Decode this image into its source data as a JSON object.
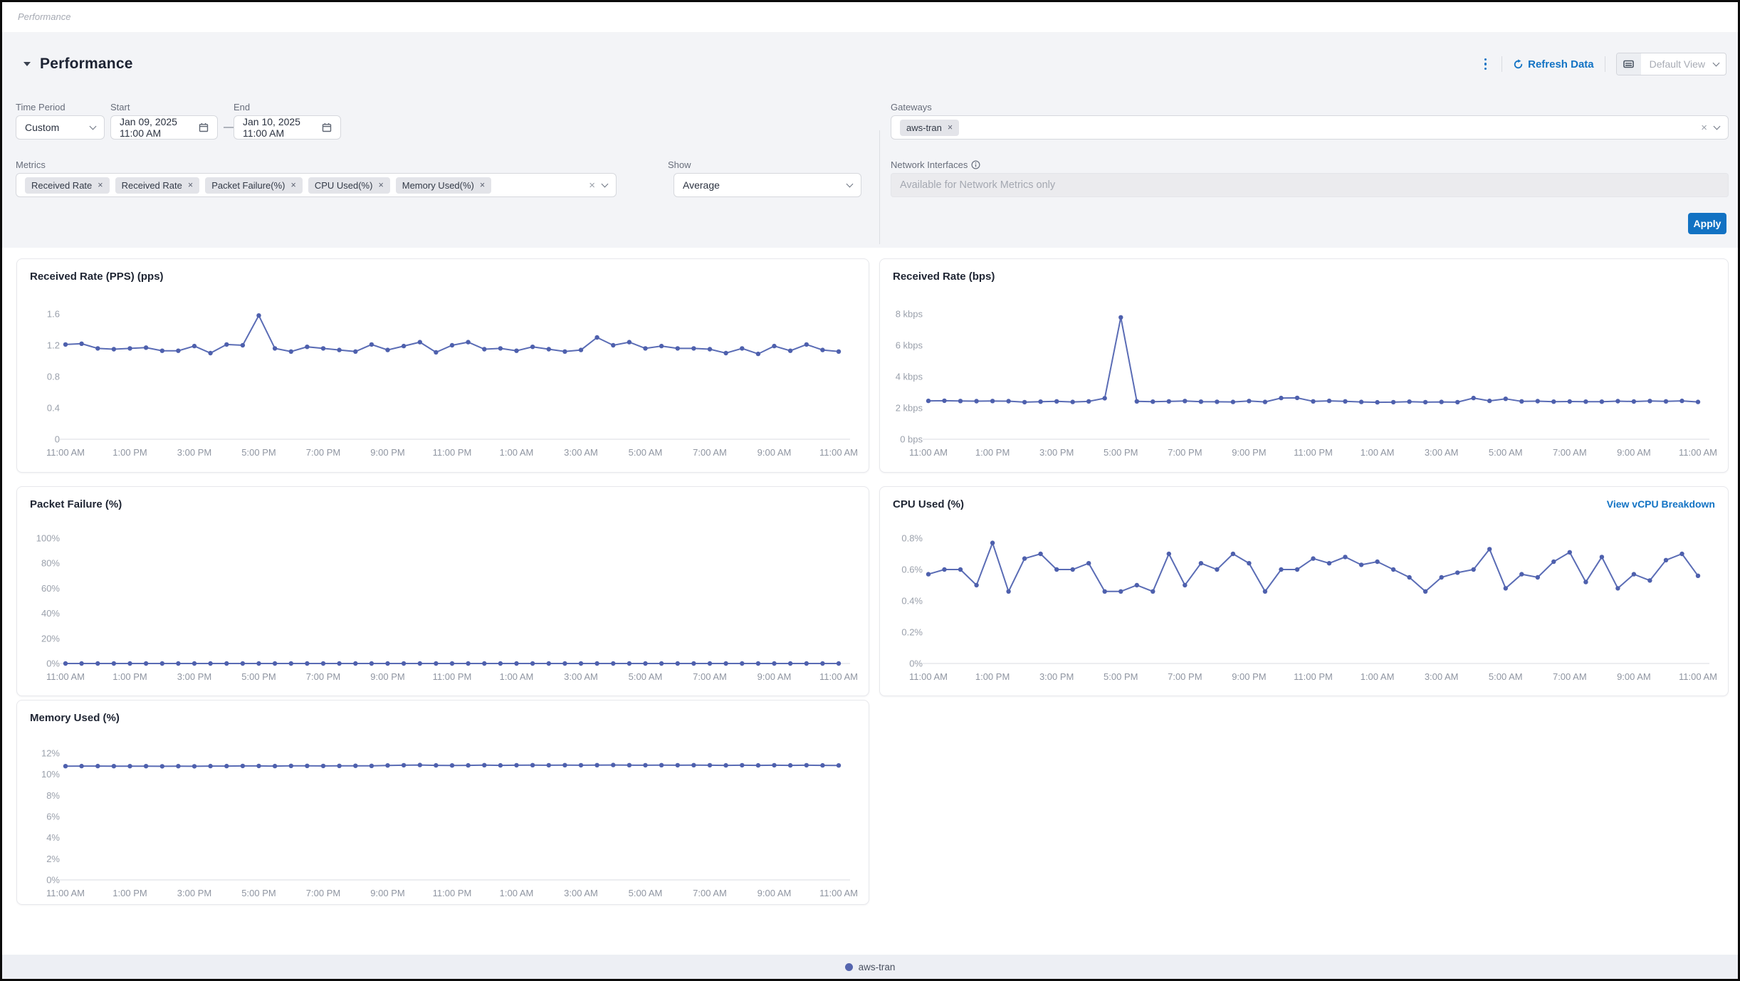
{
  "breadcrumb": {
    "label": "Performance"
  },
  "header": {
    "title": "Performance",
    "refresh_label": "Refresh Data",
    "view_selector": {
      "value": "Default View"
    }
  },
  "filters": {
    "time_period": {
      "label": "Time Period",
      "value": "Custom"
    },
    "start": {
      "label": "Start",
      "value": "Jan 09, 2025 11:00 AM"
    },
    "range_separator": "—",
    "end": {
      "label": "End",
      "value": "Jan 10, 2025 11:00 AM"
    },
    "gateways": {
      "label": "Gateways",
      "chips": [
        "aws-tran"
      ]
    },
    "metrics": {
      "label": "Metrics",
      "chips": [
        "Received Rate",
        "Received Rate",
        "Packet Failure(%)",
        "CPU Used(%)",
        "Memory Used(%)"
      ]
    },
    "show": {
      "label": "Show",
      "value": "Average"
    },
    "network_interfaces": {
      "label": "Network Interfaces",
      "placeholder": "Available for Network Metrics only"
    },
    "apply_label": "Apply"
  },
  "footer": {
    "legend": [
      {
        "label": "aws-tran",
        "color": "#5565ae"
      }
    ]
  },
  "colors": {
    "accent_blue": "#1273c4",
    "series_line": "#5a6cb5",
    "series_dot": "#4e60ad",
    "panel_bg": "#f3f4f7",
    "footer_bg": "#edeff4"
  },
  "chart_data": [
    {
      "type": "line",
      "title": "Received Rate (PPS) (pps)",
      "y_max": 1.6,
      "y_ticks": [
        {
          "label": "1.6",
          "value": 1.6
        },
        {
          "label": "1.2",
          "value": 1.2
        },
        {
          "label": "0.8",
          "value": 0.8
        },
        {
          "label": "0.4",
          "value": 0.4
        },
        {
          "label": "0",
          "value": 0
        }
      ],
      "x_labels": [
        "11:00 AM",
        "1:00 PM",
        "3:00 PM",
        "5:00 PM",
        "7:00 PM",
        "9:00 PM",
        "11:00 PM",
        "1:00 AM",
        "3:00 AM",
        "5:00 AM",
        "7:00 AM",
        "9:00 AM",
        "11:00 AM"
      ],
      "x_label_every": 4,
      "grid": false,
      "legend_position": "shared-footer",
      "series": [
        {
          "name": "aws-tran",
          "values": [
            1.21,
            1.22,
            1.16,
            1.15,
            1.16,
            1.17,
            1.13,
            1.13,
            1.19,
            1.1,
            1.21,
            1.2,
            1.58,
            1.16,
            1.12,
            1.18,
            1.16,
            1.14,
            1.12,
            1.21,
            1.14,
            1.19,
            1.24,
            1.11,
            1.2,
            1.24,
            1.15,
            1.16,
            1.13,
            1.18,
            1.15,
            1.12,
            1.14,
            1.3,
            1.2,
            1.24,
            1.16,
            1.19,
            1.16,
            1.16,
            1.15,
            1.1,
            1.16,
            1.09,
            1.19,
            1.13,
            1.21,
            1.14,
            1.12
          ]
        }
      ]
    },
    {
      "type": "line",
      "title": "Received Rate (bps)",
      "y_max": 8,
      "y_unit": "kbps",
      "y_ticks": [
        {
          "label": "8 kbps",
          "value": 8
        },
        {
          "label": "6 kbps",
          "value": 6
        },
        {
          "label": "4 kbps",
          "value": 4
        },
        {
          "label": "2 kbps",
          "value": 2
        },
        {
          "label": "0 bps",
          "value": 0
        }
      ],
      "x_labels": [
        "11:00 AM",
        "1:00 PM",
        "3:00 PM",
        "5:00 PM",
        "7:00 PM",
        "9:00 PM",
        "11:00 PM",
        "1:00 AM",
        "3:00 AM",
        "5:00 AM",
        "7:00 AM",
        "9:00 AM",
        "11:00 AM"
      ],
      "x_label_every": 4,
      "grid": false,
      "legend_position": "shared-footer",
      "series": [
        {
          "name": "aws-tran",
          "values": [
            2.45,
            2.46,
            2.44,
            2.43,
            2.44,
            2.43,
            2.37,
            2.4,
            2.42,
            2.38,
            2.42,
            2.62,
            7.78,
            2.42,
            2.4,
            2.42,
            2.44,
            2.4,
            2.39,
            2.38,
            2.44,
            2.38,
            2.63,
            2.64,
            2.42,
            2.45,
            2.42,
            2.38,
            2.36,
            2.37,
            2.4,
            2.37,
            2.38,
            2.37,
            2.63,
            2.45,
            2.58,
            2.42,
            2.43,
            2.4,
            2.41,
            2.4,
            2.4,
            2.43,
            2.41,
            2.44,
            2.42,
            2.45,
            2.38
          ]
        }
      ]
    },
    {
      "type": "line",
      "title": "Packet Failure (%)",
      "y_max": 100,
      "y_ticks": [
        {
          "label": "100%",
          "value": 100
        },
        {
          "label": "80%",
          "value": 80
        },
        {
          "label": "60%",
          "value": 60
        },
        {
          "label": "40%",
          "value": 40
        },
        {
          "label": "20%",
          "value": 20
        },
        {
          "label": "0%",
          "value": 0
        }
      ],
      "x_labels": [
        "11:00 AM",
        "1:00 PM",
        "3:00 PM",
        "5:00 PM",
        "7:00 PM",
        "9:00 PM",
        "11:00 PM",
        "1:00 AM",
        "3:00 AM",
        "5:00 AM",
        "7:00 AM",
        "9:00 AM",
        "11:00 AM"
      ],
      "x_label_every": 4,
      "grid": false,
      "legend_position": "shared-footer",
      "series": [
        {
          "name": "aws-tran",
          "values": [
            0,
            0,
            0,
            0,
            0,
            0,
            0,
            0,
            0,
            0,
            0,
            0,
            0,
            0,
            0,
            0,
            0,
            0,
            0,
            0,
            0,
            0,
            0,
            0,
            0,
            0,
            0,
            0,
            0,
            0,
            0,
            0,
            0,
            0,
            0,
            0,
            0,
            0,
            0,
            0,
            0,
            0,
            0,
            0,
            0,
            0,
            0,
            0,
            0
          ]
        }
      ]
    },
    {
      "type": "line",
      "title": "CPU Used (%)",
      "link_label": "View vCPU Breakdown",
      "y_max": 0.8,
      "y_ticks": [
        {
          "label": "0.8%",
          "value": 0.8
        },
        {
          "label": "0.6%",
          "value": 0.6
        },
        {
          "label": "0.4%",
          "value": 0.4
        },
        {
          "label": "0.2%",
          "value": 0.2
        },
        {
          "label": "0%",
          "value": 0
        }
      ],
      "x_labels": [
        "11:00 AM",
        "1:00 PM",
        "3:00 PM",
        "5:00 PM",
        "7:00 PM",
        "9:00 PM",
        "11:00 PM",
        "1:00 AM",
        "3:00 AM",
        "5:00 AM",
        "7:00 AM",
        "9:00 AM",
        "11:00 AM"
      ],
      "x_label_every": 4,
      "grid": false,
      "legend_position": "shared-footer",
      "series": [
        {
          "name": "aws-tran",
          "values": [
            0.57,
            0.6,
            0.6,
            0.5,
            0.77,
            0.46,
            0.67,
            0.7,
            0.6,
            0.6,
            0.64,
            0.46,
            0.46,
            0.5,
            0.46,
            0.7,
            0.5,
            0.64,
            0.6,
            0.7,
            0.64,
            0.46,
            0.6,
            0.6,
            0.67,
            0.64,
            0.68,
            0.63,
            0.65,
            0.6,
            0.55,
            0.46,
            0.55,
            0.58,
            0.6,
            0.73,
            0.48,
            0.57,
            0.55,
            0.65,
            0.71,
            0.52,
            0.68,
            0.48,
            0.57,
            0.53,
            0.66,
            0.7,
            0.56
          ]
        }
      ]
    },
    {
      "type": "line",
      "title": "Memory Used (%)",
      "y_max": 12,
      "y_ticks": [
        {
          "label": "12%",
          "value": 12
        },
        {
          "label": "10%",
          "value": 10
        },
        {
          "label": "8%",
          "value": 8
        },
        {
          "label": "6%",
          "value": 6
        },
        {
          "label": "4%",
          "value": 4
        },
        {
          "label": "2%",
          "value": 2
        },
        {
          "label": "0%",
          "value": 0
        }
      ],
      "x_labels": [
        "11:00 AM",
        "1:00 PM",
        "3:00 PM",
        "5:00 PM",
        "7:00 PM",
        "9:00 PM",
        "11:00 PM",
        "1:00 AM",
        "3:00 AM",
        "5:00 AM",
        "7:00 AM",
        "9:00 AM",
        "11:00 AM"
      ],
      "x_label_every": 4,
      "grid": false,
      "legend_position": "shared-footer",
      "series": [
        {
          "name": "aws-tran",
          "values": [
            10.77,
            10.78,
            10.78,
            10.77,
            10.77,
            10.77,
            10.76,
            10.77,
            10.76,
            10.78,
            10.78,
            10.79,
            10.79,
            10.78,
            10.8,
            10.8,
            10.79,
            10.8,
            10.81,
            10.8,
            10.84,
            10.86,
            10.88,
            10.85,
            10.84,
            10.85,
            10.87,
            10.85,
            10.86,
            10.87,
            10.86,
            10.87,
            10.86,
            10.87,
            10.88,
            10.87,
            10.86,
            10.87,
            10.86,
            10.87,
            10.86,
            10.85,
            10.86,
            10.85,
            10.86,
            10.85,
            10.86,
            10.85,
            10.84
          ]
        }
      ]
    }
  ]
}
